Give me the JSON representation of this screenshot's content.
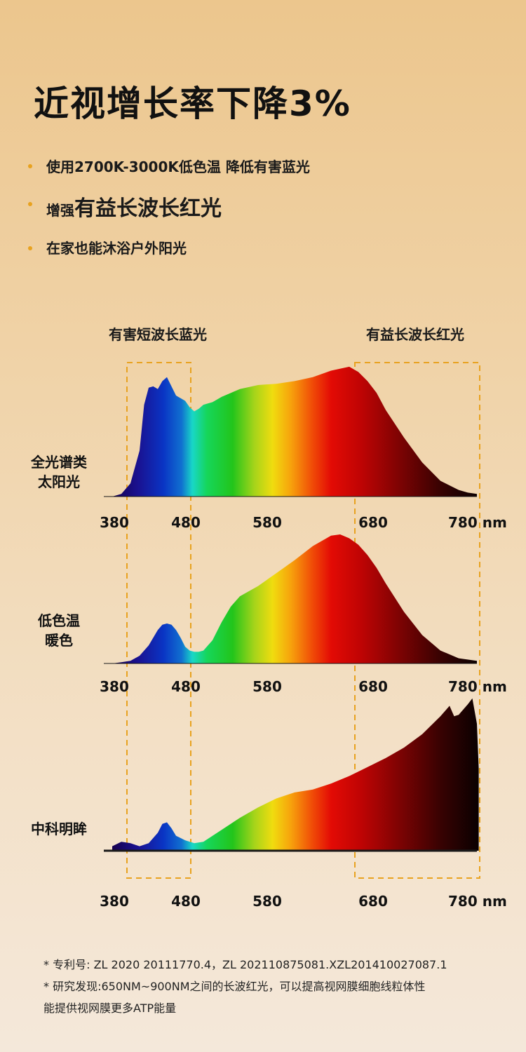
{
  "title": "近视增长率下降3%",
  "bullets": [
    {
      "text": "使用2700K-3000K低色温 降低有害蓝光"
    },
    {
      "prefix": "增强",
      "emphasis": "有益长波长红光"
    },
    {
      "text": "在家也能沐浴户外阳光"
    }
  ],
  "highlight_color": "#e8a21f",
  "chart_data": {
    "type": "area",
    "x_unit": "nm",
    "x_ticks": [
      "380",
      "480",
      "580",
      "680",
      "780 nm"
    ],
    "xlim": [
      380,
      780
    ],
    "regions": [
      {
        "label": "有害短波长蓝光",
        "range": [
          380,
          480
        ]
      },
      {
        "label": "有益长波长红光",
        "range": [
          680,
          780
        ]
      }
    ],
    "series": [
      {
        "name": "全光谱类太阳光",
        "label_lines": [
          "全光谱类",
          "太阳光"
        ],
        "x": [
          380,
          390,
          400,
          410,
          415,
          420,
          425,
          430,
          435,
          440,
          445,
          450,
          455,
          460,
          465,
          470,
          475,
          480,
          490,
          500,
          520,
          540,
          560,
          580,
          600,
          620,
          640,
          650,
          660,
          670,
          680,
          700,
          720,
          740,
          760,
          770,
          780
        ],
        "y": [
          0.0,
          0.02,
          0.1,
          0.35,
          0.7,
          0.83,
          0.84,
          0.82,
          0.88,
          0.91,
          0.84,
          0.77,
          0.75,
          0.73,
          0.68,
          0.65,
          0.67,
          0.7,
          0.72,
          0.76,
          0.82,
          0.85,
          0.86,
          0.88,
          0.91,
          0.96,
          0.99,
          0.95,
          0.88,
          0.79,
          0.66,
          0.45,
          0.26,
          0.12,
          0.05,
          0.03,
          0.02
        ]
      },
      {
        "name": "低色温暖色",
        "label_lines": [
          "低色温",
          "暖色"
        ],
        "x": [
          380,
          390,
          400,
          410,
          420,
          430,
          435,
          440,
          445,
          450,
          455,
          460,
          465,
          470,
          475,
          480,
          490,
          500,
          510,
          520,
          540,
          560,
          580,
          600,
          620,
          630,
          640,
          650,
          660,
          670,
          680,
          700,
          720,
          740,
          760,
          780
        ],
        "y": [
          0.0,
          0.01,
          0.02,
          0.06,
          0.14,
          0.26,
          0.3,
          0.31,
          0.3,
          0.26,
          0.2,
          0.13,
          0.1,
          0.09,
          0.09,
          0.1,
          0.18,
          0.32,
          0.44,
          0.52,
          0.6,
          0.7,
          0.8,
          0.91,
          0.99,
          1.0,
          0.97,
          0.92,
          0.84,
          0.74,
          0.62,
          0.4,
          0.22,
          0.1,
          0.04,
          0.02
        ]
      },
      {
        "name": "中科明眸",
        "label_lines": [
          "中科明眸"
        ],
        "x": [
          380,
          390,
          400,
          410,
          420,
          430,
          435,
          440,
          445,
          450,
          460,
          470,
          480,
          490,
          500,
          520,
          540,
          560,
          580,
          600,
          620,
          640,
          660,
          680,
          700,
          720,
          740,
          750,
          755,
          760,
          770,
          775,
          780,
          782
        ],
        "y": [
          0.03,
          0.06,
          0.05,
          0.03,
          0.05,
          0.12,
          0.18,
          0.19,
          0.15,
          0.1,
          0.07,
          0.05,
          0.06,
          0.1,
          0.14,
          0.22,
          0.29,
          0.35,
          0.39,
          0.41,
          0.45,
          0.5,
          0.56,
          0.62,
          0.69,
          0.78,
          0.9,
          0.97,
          0.9,
          0.91,
          0.98,
          1.02,
          0.85,
          0.55
        ]
      }
    ]
  },
  "footnotes": [
    "* 专利号: ZL 2020 20111770.4，ZL 202110875081.XZL201410027087.1",
    "* 研究发现:650NM~900NM之间的长波红光，可以提高视网膜细胞线粒体性",
    "能提供视网膜更多ATP能量"
  ]
}
